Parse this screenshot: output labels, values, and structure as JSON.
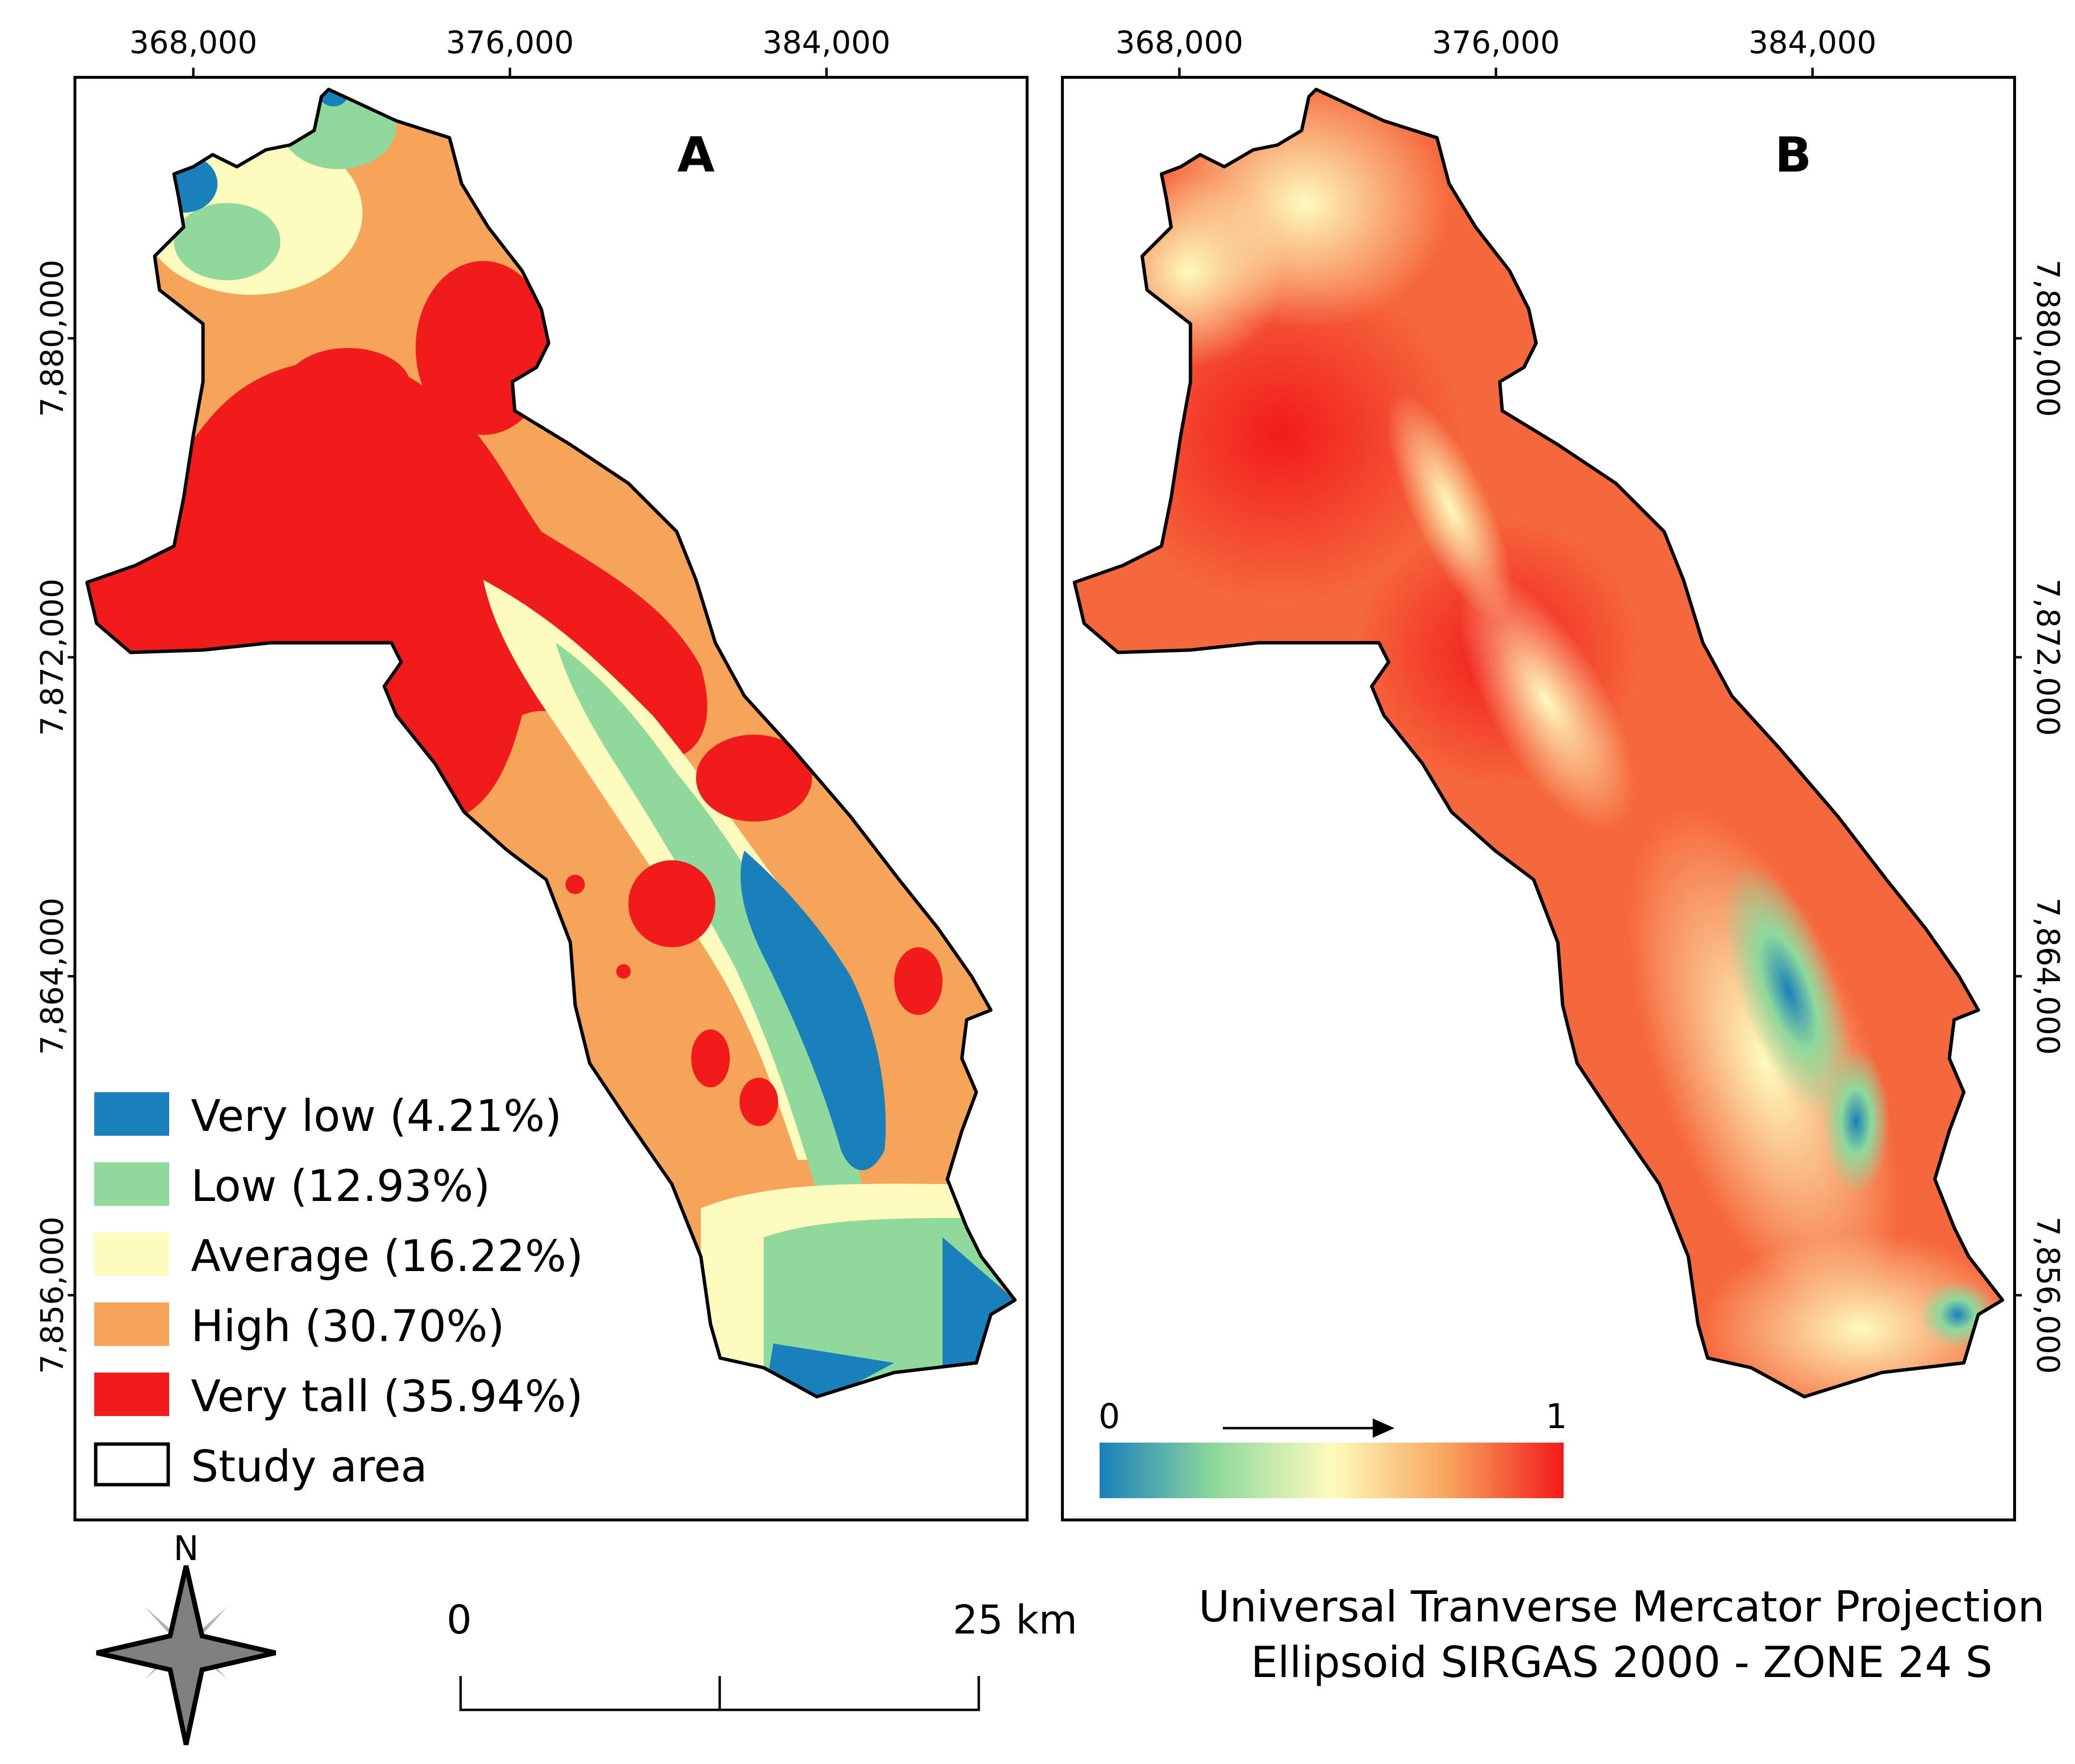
{
  "panels": {
    "a_label": "A",
    "b_label": "B"
  },
  "axes": {
    "x_ticks": [
      "368,000",
      "376,000",
      "384,000"
    ],
    "y_ticks": [
      "7,880,000",
      "7,872,000",
      "7,864,000",
      "7,856,000"
    ]
  },
  "legend_a": {
    "items": [
      {
        "label": "Very low (4.21%)",
        "color": "#1a80bb",
        "percent": 4.21
      },
      {
        "label": "Low (12.93%)",
        "color": "#8ed99b",
        "percent": 12.93
      },
      {
        "label": "Average (16.22%)",
        "color": "#fdfbbd",
        "percent": 16.22
      },
      {
        "label": "High (30.70%)",
        "color": "#f7a45b",
        "percent": 30.7
      },
      {
        "label": "Very tall (35.94%)",
        "color": "#f21b1b",
        "percent": 35.94
      }
    ],
    "study_area": "Study area"
  },
  "legend_b": {
    "min_label": "0",
    "max_label": "1",
    "ramp_colors": [
      "#1a80bb",
      "#8ed99b",
      "#fdfbbd",
      "#f7a45b",
      "#f21b1b"
    ]
  },
  "north": {
    "label": "N"
  },
  "scale_bar": {
    "start": "0",
    "end": "25 km"
  },
  "projection": {
    "line1": "Universal Tranverse Mercator Projection",
    "line2": "Ellipsoid SIRGAS 2000 - ZONE 24 S"
  }
}
